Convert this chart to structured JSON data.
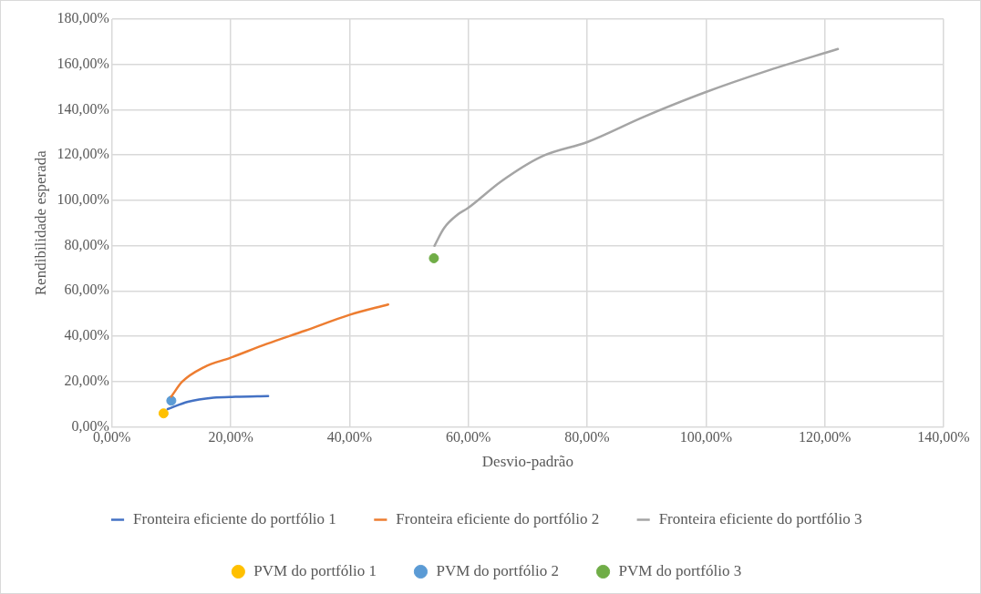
{
  "chart_data": {
    "type": "line",
    "xlabel": "Desvio-padrão",
    "ylabel": "Rendibilidade esperada",
    "xlim": [
      0,
      140
    ],
    "ylim": [
      0,
      180
    ],
    "xticks": [
      {
        "value": 0,
        "label": "0,00%"
      },
      {
        "value": 20,
        "label": "20,00%"
      },
      {
        "value": 40,
        "label": "40,00%"
      },
      {
        "value": 60,
        "label": "60,00%"
      },
      {
        "value": 80,
        "label": "80,00%"
      },
      {
        "value": 100,
        "label": "100,00%"
      },
      {
        "value": 120,
        "label": "120,00%"
      },
      {
        "value": 140,
        "label": "140,00%"
      }
    ],
    "yticks": [
      {
        "value": 0,
        "label": "0,00%"
      },
      {
        "value": 20,
        "label": "20,00%"
      },
      {
        "value": 40,
        "label": "40,00%"
      },
      {
        "value": 60,
        "label": "60,00%"
      },
      {
        "value": 80,
        "label": "80,00%"
      },
      {
        "value": 100,
        "label": "100,00%"
      },
      {
        "value": 120,
        "label": "120,00%"
      },
      {
        "value": 140,
        "label": "140,00%"
      },
      {
        "value": 160,
        "label": "160,00%"
      },
      {
        "value": 180,
        "label": "180,00%"
      }
    ],
    "grid": true,
    "legend": "bottom",
    "line_style": "solid",
    "series": [
      {
        "name": "Fronteira eficiente do portfólio 1",
        "type": "line",
        "color": "#4472c4",
        "x": [
          9.4,
          12.8,
          17.1,
          20.8,
          26.3
        ],
        "values": [
          7.8,
          11.0,
          12.8,
          13.2,
          13.5
        ]
      },
      {
        "name": "Fronteira eficiente do portfólio 2",
        "type": "line",
        "color": "#ed7d31",
        "x": [
          10.0,
          11.8,
          15.5,
          19.9,
          26.1,
          32.5,
          40.1,
          46.5
        ],
        "values": [
          13.3,
          19.8,
          26.3,
          30.4,
          36.6,
          42.4,
          49.5,
          54.0
        ]
      },
      {
        "name": "Fronteira eficiente do portfólio 3",
        "type": "line",
        "color": "#a5a5a5",
        "x": [
          54.3,
          55.9,
          58.1,
          60.0,
          65.5,
          72.4,
          80.1,
          89.5,
          100.0,
          110.7,
          122.2
        ],
        "values": [
          79.9,
          87.7,
          93.5,
          96.7,
          108.3,
          119.4,
          125.8,
          136.8,
          147.8,
          157.5,
          166.8
        ]
      },
      {
        "name": "PVM do portfólio 1",
        "type": "scatter",
        "marker": "circle",
        "color": "#ffc000",
        "x": [
          8.7
        ],
        "values": [
          5.9
        ]
      },
      {
        "name": "PVM do portfólio 2",
        "type": "scatter",
        "marker": "circle",
        "color": "#5b9bd5",
        "x": [
          10.0
        ],
        "values": [
          11.5
        ]
      },
      {
        "name": "PVM do portfólio 3",
        "type": "scatter",
        "marker": "circle",
        "color": "#70ad47",
        "x": [
          54.2
        ],
        "values": [
          74.4
        ]
      }
    ]
  }
}
